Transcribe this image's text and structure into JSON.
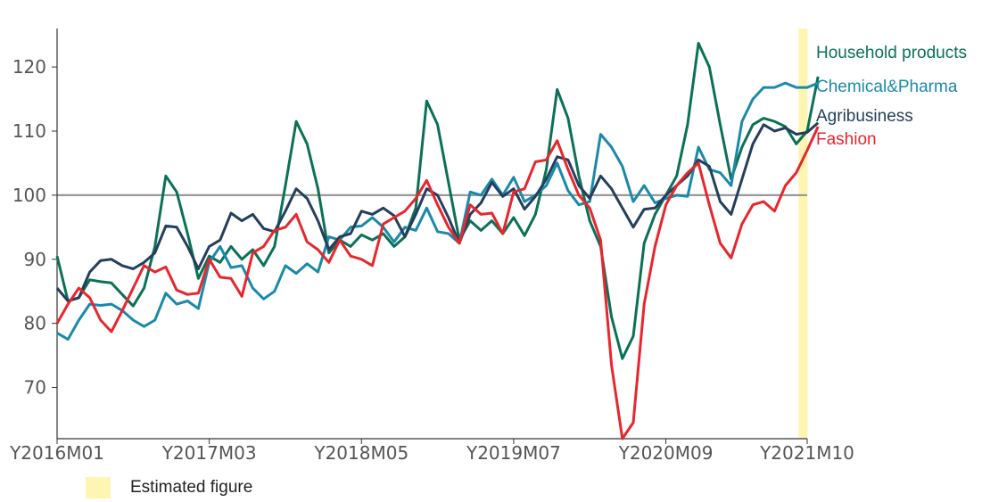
{
  "chart_data": {
    "type": "line",
    "title": "",
    "xlabel": "",
    "ylabel": "",
    "ylim": [
      62,
      126
    ],
    "yticks": [
      70,
      80,
      90,
      100,
      110,
      120
    ],
    "xlim": [
      "Y2016M01",
      "Y2021M10"
    ],
    "xticks": [
      "Y2016M01",
      "Y2017M03",
      "Y2018M05",
      "Y2019M07",
      "Y2020M09",
      "Y2021M10"
    ],
    "reference_line": 100,
    "grid": false,
    "legend": "right",
    "estimated_months": [
      "Y2021M10"
    ],
    "series": [
      {
        "name": "Household products",
        "color": "#0b7156",
        "values": [
          90.5,
          83.5,
          84.0,
          86.8,
          86.5,
          86.3,
          84.5,
          82.7,
          85.5,
          92.0,
          103.0,
          100.5,
          94.0,
          87.0,
          90.5,
          89.5,
          92.0,
          90.0,
          91.5,
          89.0,
          92.0,
          101.5,
          111.5,
          108.0,
          101.0,
          91.0,
          93.0,
          92.0,
          93.8,
          93.0,
          94.0,
          92.0,
          93.5,
          98.0,
          114.7,
          111.0,
          102.0,
          93.0,
          96.0,
          94.5,
          96.0,
          94.0,
          96.5,
          93.7,
          97.0,
          104.0,
          116.5,
          112.0,
          103.0,
          96.0,
          92.0,
          81.0,
          74.5,
          78.0,
          92.5,
          97.0,
          100.0,
          103.0,
          111.0,
          123.7,
          120.0,
          111.0,
          102.5,
          107.5,
          111.0,
          112.0,
          111.5,
          110.7,
          108.0,
          110.0,
          118.5
        ]
      },
      {
        "name": "Chemical&Pharma",
        "color": "#1a8aa8",
        "values": [
          78.5,
          77.5,
          80.5,
          83.0,
          82.8,
          83.0,
          82.0,
          80.5,
          79.5,
          80.5,
          84.7,
          83.0,
          83.5,
          82.3,
          89.5,
          92.0,
          88.7,
          89.0,
          85.5,
          83.8,
          85.0,
          89.0,
          87.8,
          89.3,
          88.0,
          93.5,
          93.0,
          95.0,
          95.2,
          96.5,
          95.0,
          92.7,
          95.0,
          94.5,
          98.0,
          94.3,
          94.0,
          92.5,
          100.5,
          100.0,
          102.5,
          100.0,
          102.8,
          99.0,
          100.0,
          101.5,
          105.0,
          100.7,
          98.5,
          99.0,
          109.5,
          107.5,
          104.5,
          99.0,
          101.5,
          98.8,
          99.5,
          100.0,
          99.8,
          107.5,
          104.0,
          103.5,
          101.5,
          111.5,
          115.0,
          116.8,
          116.8,
          117.5,
          116.8,
          116.8,
          117.5
        ]
      },
      {
        "name": "Agribusiness",
        "color": "#243e5c",
        "values": [
          85.5,
          83.5,
          84.0,
          88.0,
          89.8,
          90.0,
          89.0,
          88.5,
          89.5,
          91.0,
          95.2,
          95.0,
          92.0,
          88.5,
          92.0,
          93.0,
          97.2,
          96.0,
          97.0,
          94.8,
          94.3,
          97.5,
          101.0,
          99.5,
          96.0,
          91.5,
          93.5,
          94.0,
          97.5,
          97.0,
          98.0,
          96.8,
          93.5,
          97.0,
          101.0,
          100.0,
          96.5,
          92.5,
          97.0,
          98.8,
          102.0,
          99.8,
          101.0,
          97.8,
          99.8,
          102.5,
          106.0,
          105.5,
          101.5,
          99.5,
          103.0,
          101.0,
          98.0,
          95.0,
          97.8,
          98.0,
          100.0,
          101.5,
          103.0,
          105.5,
          104.5,
          99.0,
          97.0,
          102.5,
          108.0,
          111.0,
          110.0,
          110.5,
          109.5,
          109.8,
          111.3
        ]
      },
      {
        "name": "Fashion",
        "color": "#e8262d",
        "values": [
          80.0,
          83.0,
          85.5,
          84.0,
          80.5,
          78.7,
          82.0,
          85.5,
          89.0,
          88.0,
          88.8,
          85.2,
          84.5,
          84.7,
          90.0,
          87.2,
          87.0,
          84.2,
          91.0,
          92.0,
          94.5,
          95.0,
          97.0,
          92.7,
          91.5,
          89.5,
          93.0,
          90.5,
          90.0,
          89.0,
          95.5,
          96.5,
          97.5,
          99.5,
          102.3,
          98.5,
          95.0,
          92.5,
          98.5,
          97.0,
          97.2,
          94.0,
          100.5,
          101.0,
          105.2,
          105.5,
          108.5,
          104.0,
          100.0,
          98.0,
          93.0,
          73.5,
          62.0,
          64.5,
          83.0,
          92.0,
          98.5,
          101.5,
          103.5,
          105.0,
          98.5,
          92.5,
          90.2,
          95.5,
          98.5,
          99.0,
          97.5,
          101.5,
          103.5,
          107.0,
          110.7
        ]
      }
    ]
  },
  "legend_items": [
    {
      "label": "Estimated figure",
      "color": "#fff5b3"
    }
  ]
}
